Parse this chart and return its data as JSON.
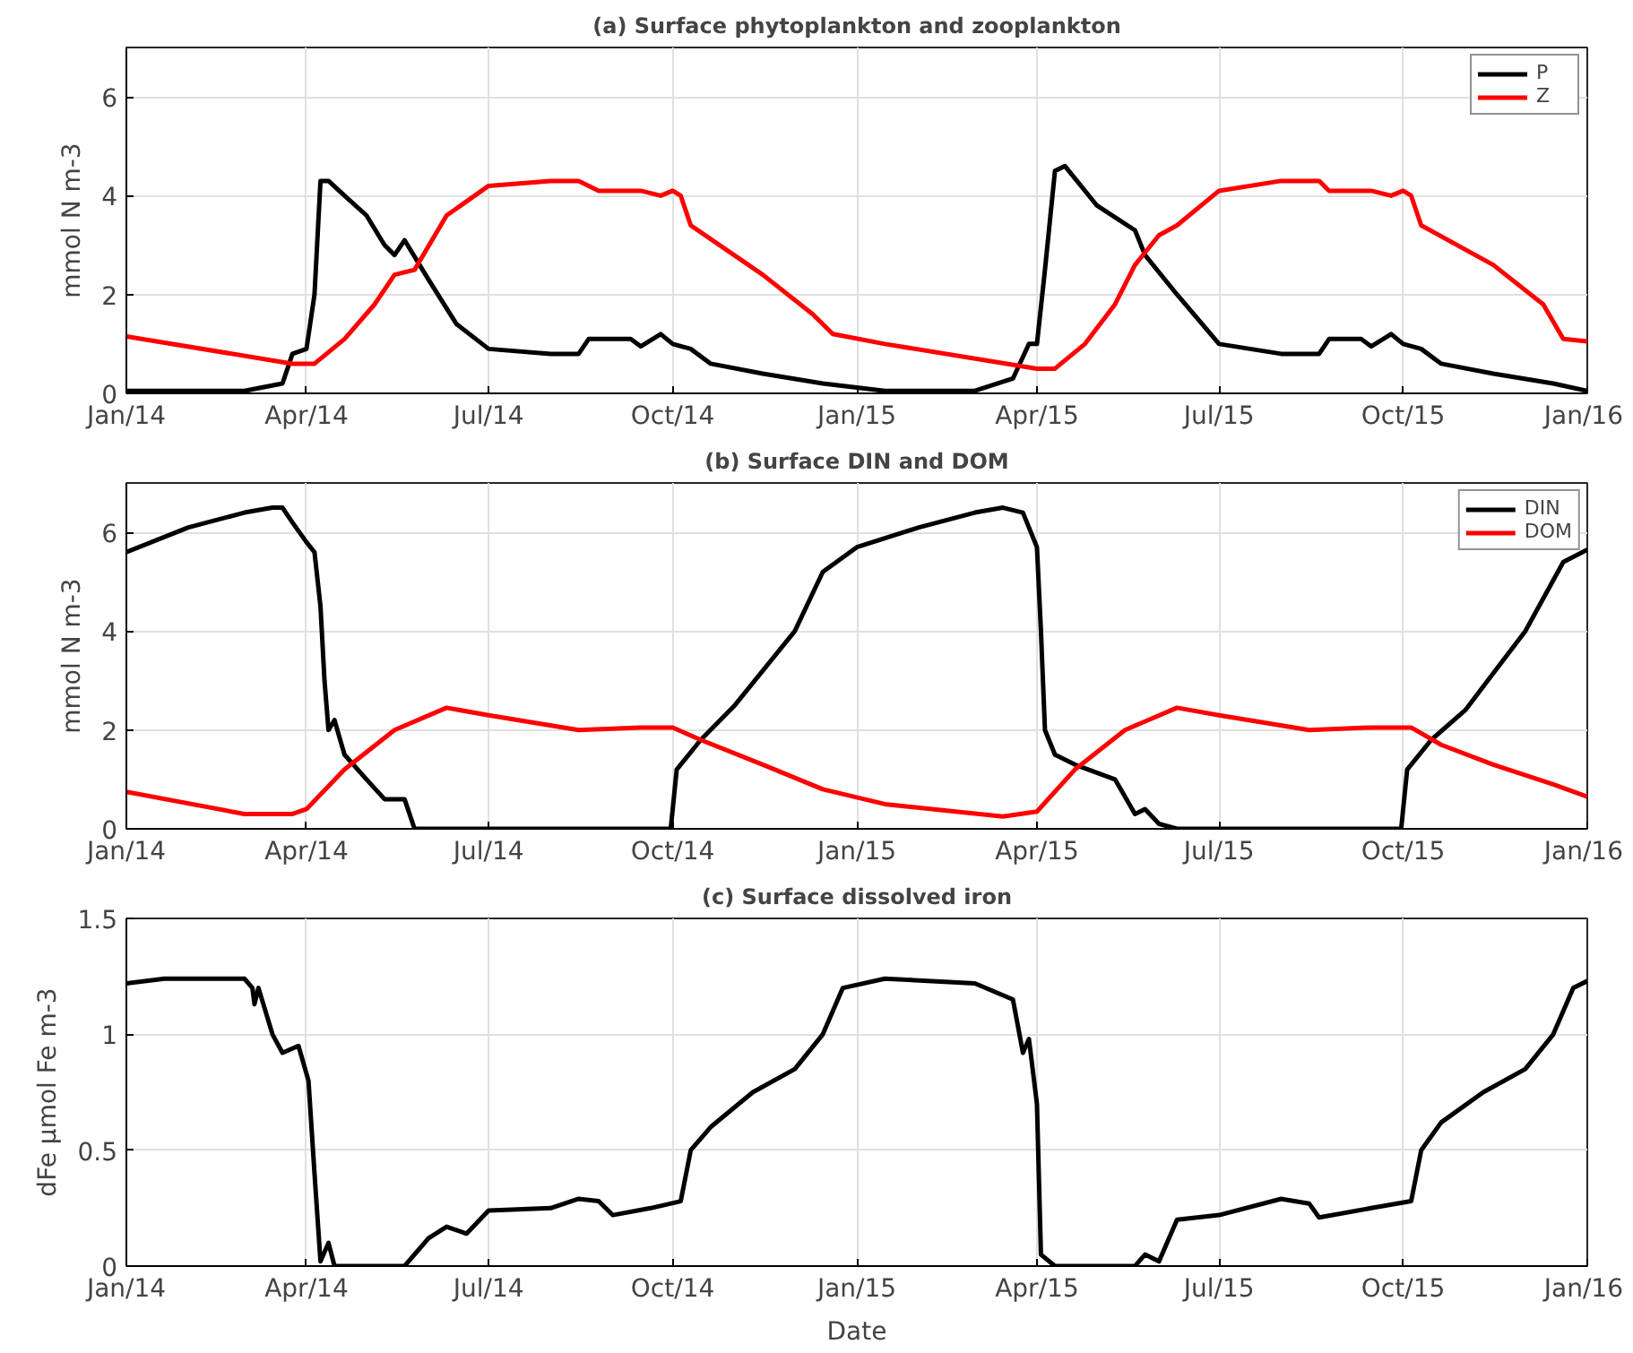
{
  "chart_data": [
    {
      "type": "line",
      "title": "(a) Surface phytoplankton and zooplankton",
      "ylabel": "mmol N m-3",
      "xlim": [
        "2014-01-01",
        "2016-01-01"
      ],
      "xticks": [
        {
          "value": "2014-01-01",
          "label": "Jan/14"
        },
        {
          "value": "2014-04-01",
          "label": "Apr/14"
        },
        {
          "value": "2014-07-01",
          "label": "Jul/14"
        },
        {
          "value": "2014-10-01",
          "label": "Oct/14"
        },
        {
          "value": "2015-01-01",
          "label": "Jan/15"
        },
        {
          "value": "2015-04-01",
          "label": "Apr/15"
        },
        {
          "value": "2015-07-01",
          "label": "Jul/15"
        },
        {
          "value": "2015-10-01",
          "label": "Oct/15"
        },
        {
          "value": "2016-01-01",
          "label": "Jan/16"
        }
      ],
      "ylim": [
        0,
        7
      ],
      "yticks": [
        0,
        2,
        4,
        6
      ],
      "grid": true,
      "legend": "top right",
      "series": [
        {
          "name": "P",
          "color": "#000000",
          "x": [
            "2014-01-01",
            "2014-03-01",
            "2014-03-20",
            "2014-03-25",
            "2014-04-01",
            "2014-04-05",
            "2014-04-08",
            "2014-04-12",
            "2014-04-20",
            "2014-05-01",
            "2014-05-10",
            "2014-05-15",
            "2014-05-20",
            "2014-06-01",
            "2014-06-15",
            "2014-07-01",
            "2014-08-01",
            "2014-08-15",
            "2014-08-20",
            "2014-09-10",
            "2014-09-15",
            "2014-09-25",
            "2014-10-01",
            "2014-10-10",
            "2014-10-20",
            "2014-11-15",
            "2014-12-15",
            "2015-01-15",
            "2015-03-01",
            "2015-03-20",
            "2015-03-28",
            "2015-04-01",
            "2015-04-05",
            "2015-04-10",
            "2015-04-15",
            "2015-05-01",
            "2015-05-20",
            "2015-05-25",
            "2015-06-10",
            "2015-07-01",
            "2015-08-01",
            "2015-08-20",
            "2015-08-25",
            "2015-09-10",
            "2015-09-15",
            "2015-09-25",
            "2015-10-01",
            "2015-10-10",
            "2015-10-20",
            "2015-11-15",
            "2015-12-15",
            "2016-01-01"
          ],
          "values": [
            0.05,
            0.05,
            0.2,
            0.8,
            0.9,
            2.0,
            4.3,
            4.3,
            4.0,
            3.6,
            3.0,
            2.8,
            3.1,
            2.3,
            1.4,
            0.9,
            0.8,
            0.8,
            1.1,
            1.1,
            0.95,
            1.2,
            1.0,
            0.9,
            0.6,
            0.4,
            0.2,
            0.05,
            0.05,
            0.3,
            1.0,
            1.0,
            2.5,
            4.5,
            4.6,
            3.8,
            3.3,
            2.8,
            2.0,
            1.0,
            0.8,
            0.8,
            1.1,
            1.1,
            0.95,
            1.2,
            1.0,
            0.9,
            0.6,
            0.4,
            0.2,
            0.05
          ]
        },
        {
          "name": "Z",
          "color": "#ff0000",
          "x": [
            "2014-01-01",
            "2014-03-25",
            "2014-04-05",
            "2014-04-20",
            "2014-05-05",
            "2014-05-15",
            "2014-05-25",
            "2014-06-10",
            "2014-07-01",
            "2014-08-01",
            "2014-08-15",
            "2014-08-25",
            "2014-09-15",
            "2014-09-25",
            "2014-10-01",
            "2014-10-05",
            "2014-10-10",
            "2014-11-15",
            "2014-12-10",
            "2014-12-20",
            "2015-01-15",
            "2015-04-01",
            "2015-04-10",
            "2015-04-25",
            "2015-05-10",
            "2015-05-20",
            "2015-06-01",
            "2015-06-10",
            "2015-07-01",
            "2015-08-01",
            "2015-08-20",
            "2015-08-25",
            "2015-09-15",
            "2015-09-25",
            "2015-10-01",
            "2015-10-05",
            "2015-10-10",
            "2015-11-15",
            "2015-12-10",
            "2015-12-20",
            "2016-01-01"
          ],
          "values": [
            1.15,
            0.6,
            0.6,
            1.1,
            1.8,
            2.4,
            2.5,
            3.6,
            4.2,
            4.3,
            4.3,
            4.1,
            4.1,
            4.0,
            4.1,
            4.0,
            3.4,
            2.4,
            1.6,
            1.2,
            1.0,
            0.5,
            0.5,
            1.0,
            1.8,
            2.6,
            3.2,
            3.4,
            4.1,
            4.3,
            4.3,
            4.1,
            4.1,
            4.0,
            4.1,
            4.0,
            3.4,
            2.6,
            1.8,
            1.1,
            1.05
          ]
        }
      ]
    },
    {
      "type": "line",
      "title": "(b) Surface DIN and DOM",
      "ylabel": "mmol N m-3",
      "xlim": [
        "2014-01-01",
        "2016-01-01"
      ],
      "xticks": [
        {
          "value": "2014-01-01",
          "label": "Jan/14"
        },
        {
          "value": "2014-04-01",
          "label": "Apr/14"
        },
        {
          "value": "2014-07-01",
          "label": "Jul/14"
        },
        {
          "value": "2014-10-01",
          "label": "Oct/14"
        },
        {
          "value": "2015-01-01",
          "label": "Jan/15"
        },
        {
          "value": "2015-04-01",
          "label": "Apr/15"
        },
        {
          "value": "2015-07-01",
          "label": "Jul/15"
        },
        {
          "value": "2015-10-01",
          "label": "Oct/15"
        },
        {
          "value": "2016-01-01",
          "label": "Jan/16"
        }
      ],
      "ylim": [
        0,
        7
      ],
      "yticks": [
        0,
        2,
        4,
        6
      ],
      "grid": true,
      "legend": "top right",
      "series": [
        {
          "name": "DIN",
          "color": "#000000",
          "x": [
            "2014-01-01",
            "2014-02-01",
            "2014-03-01",
            "2014-03-15",
            "2014-03-20",
            "2014-03-25",
            "2014-04-01",
            "2014-04-05",
            "2014-04-08",
            "2014-04-10",
            "2014-04-12",
            "2014-04-15",
            "2014-04-20",
            "2014-05-01",
            "2014-05-10",
            "2014-05-20",
            "2014-05-25",
            "2014-09-30",
            "2014-10-03",
            "2014-10-15",
            "2014-11-01",
            "2014-12-01",
            "2014-12-15",
            "2015-01-01",
            "2015-02-01",
            "2015-03-01",
            "2015-03-15",
            "2015-03-25",
            "2015-04-01",
            "2015-04-03",
            "2015-04-05",
            "2015-04-10",
            "2015-04-20",
            "2015-05-10",
            "2015-05-20",
            "2015-05-25",
            "2015-06-01",
            "2015-06-10",
            "2015-09-30",
            "2015-10-03",
            "2015-10-15",
            "2015-11-01",
            "2015-12-01",
            "2015-12-20",
            "2016-01-01"
          ],
          "values": [
            5.6,
            6.1,
            6.4,
            6.5,
            6.5,
            6.2,
            5.8,
            5.6,
            4.5,
            3.0,
            2.0,
            2.2,
            1.5,
            1.0,
            0.6,
            0.6,
            0,
            0,
            1.2,
            1.8,
            2.5,
            4.0,
            5.2,
            5.7,
            6.1,
            6.4,
            6.5,
            6.4,
            5.7,
            4.0,
            2.0,
            1.5,
            1.3,
            1.0,
            0.3,
            0.4,
            0.1,
            0,
            0,
            1.2,
            1.8,
            2.4,
            4.0,
            5.4,
            5.65
          ]
        },
        {
          "name": "DOM",
          "color": "#ff0000",
          "x": [
            "2014-01-01",
            "2014-03-01",
            "2014-03-25",
            "2014-04-01",
            "2014-04-20",
            "2014-05-15",
            "2014-06-10",
            "2014-07-01",
            "2014-08-15",
            "2014-09-15",
            "2014-10-01",
            "2014-10-15",
            "2014-11-15",
            "2014-12-15",
            "2015-01-15",
            "2015-03-15",
            "2015-04-01",
            "2015-04-20",
            "2015-05-15",
            "2015-06-10",
            "2015-07-01",
            "2015-08-15",
            "2015-09-15",
            "2015-10-05",
            "2015-10-20",
            "2015-11-15",
            "2015-12-15",
            "2016-01-01"
          ],
          "values": [
            0.75,
            0.3,
            0.3,
            0.4,
            1.2,
            2.0,
            2.45,
            2.3,
            2.0,
            2.05,
            2.05,
            1.8,
            1.3,
            0.8,
            0.5,
            0.25,
            0.35,
            1.2,
            2.0,
            2.45,
            2.3,
            2.0,
            2.05,
            2.05,
            1.7,
            1.3,
            0.9,
            0.65
          ]
        }
      ]
    },
    {
      "type": "line",
      "title": "(c) Surface dissolved iron",
      "xlabel": "Date",
      "ylabel": "dFe μmol Fe m-3",
      "xlim": [
        "2014-01-01",
        "2016-01-01"
      ],
      "xticks": [
        {
          "value": "2014-01-01",
          "label": "Jan/14"
        },
        {
          "value": "2014-04-01",
          "label": "Apr/14"
        },
        {
          "value": "2014-07-01",
          "label": "Jul/14"
        },
        {
          "value": "2014-10-01",
          "label": "Oct/14"
        },
        {
          "value": "2015-01-01",
          "label": "Jan/15"
        },
        {
          "value": "2015-04-01",
          "label": "Apr/15"
        },
        {
          "value": "2015-07-01",
          "label": "Jul/15"
        },
        {
          "value": "2015-10-01",
          "label": "Oct/15"
        },
        {
          "value": "2016-01-01",
          "label": "Jan/16"
        }
      ],
      "ylim": [
        0,
        1.5
      ],
      "yticks": [
        0,
        0.5,
        1,
        1.5
      ],
      "grid": true,
      "series": [
        {
          "color": "#000000",
          "x": [
            "2014-01-01",
            "2014-01-20",
            "2014-03-01",
            "2014-03-05",
            "2014-03-06",
            "2014-03-08",
            "2014-03-15",
            "2014-03-20",
            "2014-03-28",
            "2014-04-02",
            "2014-04-05",
            "2014-04-08",
            "2014-04-12",
            "2014-04-15",
            "2014-05-20",
            "2014-06-01",
            "2014-06-10",
            "2014-06-20",
            "2014-07-01",
            "2014-08-01",
            "2014-08-15",
            "2014-08-25",
            "2014-09-01",
            "2014-09-20",
            "2014-10-05",
            "2014-10-10",
            "2014-10-20",
            "2014-11-10",
            "2014-12-01",
            "2014-12-15",
            "2014-12-25",
            "2015-01-15",
            "2015-03-01",
            "2015-03-20",
            "2015-03-25",
            "2015-03-28",
            "2015-04-01",
            "2015-04-03",
            "2015-04-10",
            "2015-05-20",
            "2015-05-25",
            "2015-06-01",
            "2015-06-10",
            "2015-07-01",
            "2015-08-01",
            "2015-08-15",
            "2015-08-20",
            "2015-09-15",
            "2015-10-05",
            "2015-10-10",
            "2015-10-20",
            "2015-11-10",
            "2015-12-01",
            "2015-12-15",
            "2015-12-25",
            "2016-01-01"
          ],
          "values": [
            1.22,
            1.24,
            1.24,
            1.2,
            1.13,
            1.2,
            1.0,
            0.92,
            0.95,
            0.8,
            0.4,
            0.02,
            0.1,
            0.0,
            0.0,
            0.12,
            0.17,
            0.14,
            0.24,
            0.25,
            0.29,
            0.28,
            0.22,
            0.25,
            0.28,
            0.5,
            0.6,
            0.75,
            0.85,
            1.0,
            1.2,
            1.24,
            1.22,
            1.15,
            0.92,
            0.98,
            0.7,
            0.05,
            0.0,
            0.0,
            0.05,
            0.02,
            0.2,
            0.22,
            0.29,
            0.27,
            0.21,
            0.25,
            0.28,
            0.5,
            0.62,
            0.75,
            0.85,
            1.0,
            1.2,
            1.23
          ]
        }
      ]
    }
  ]
}
